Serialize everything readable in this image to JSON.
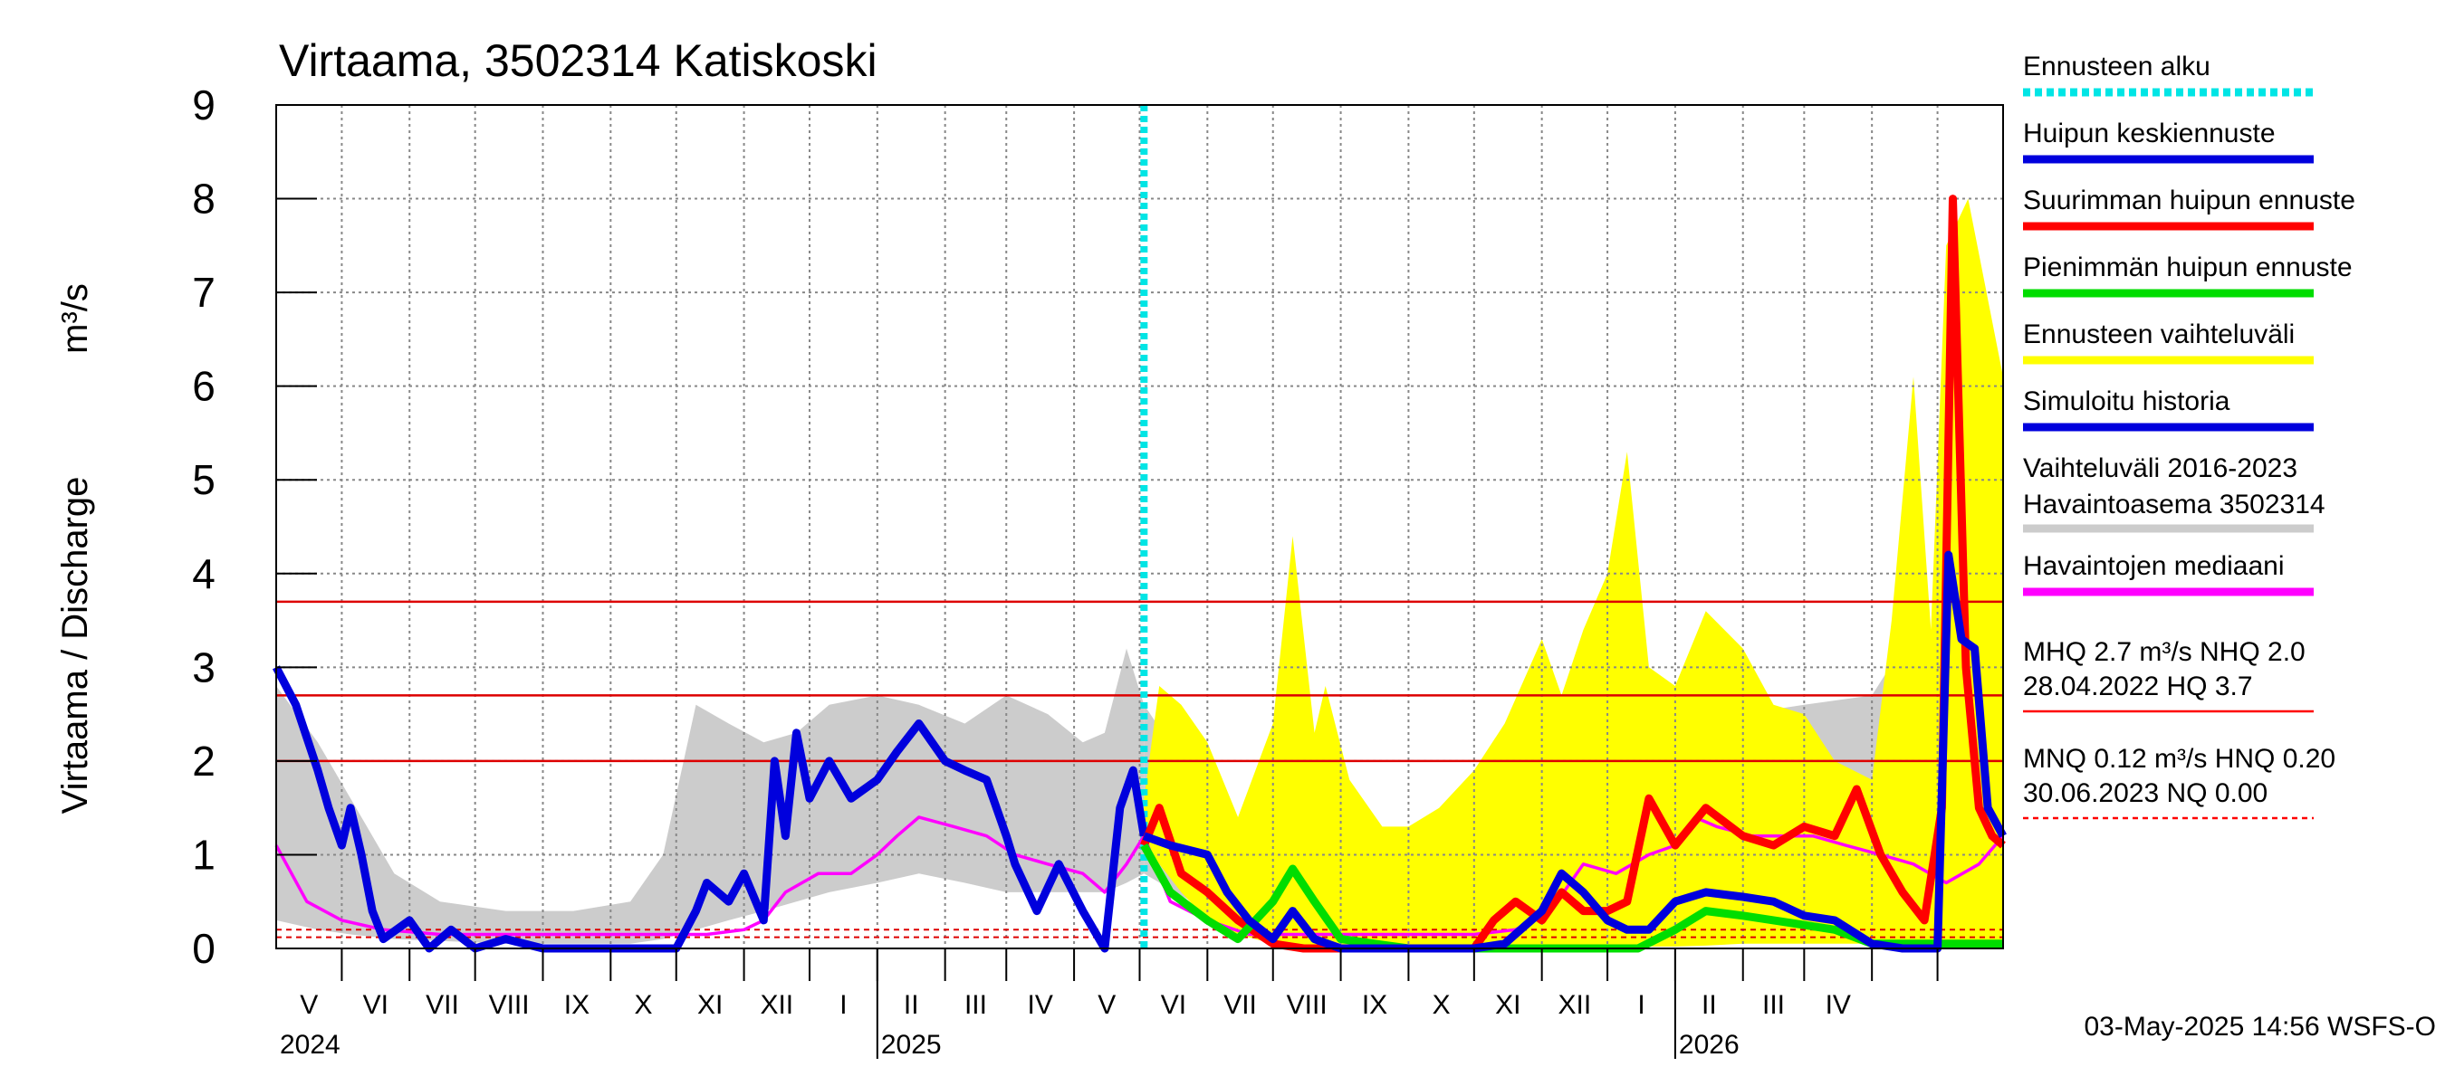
{
  "chart_data": {
    "type": "line",
    "title": "Virtaama, 3502314 Katiskoski",
    "ylabel_left": "Virtaama / Discharge",
    "ylabel_unit": "m³/s",
    "ylim": [
      0,
      9
    ],
    "yticks": [
      "0",
      "1",
      "2",
      "3",
      "4",
      "5",
      "6",
      "7",
      "8",
      "9"
    ],
    "x_start": "2024-04-01",
    "x_end": "2026-05-31",
    "month_labels": [
      "V",
      "VI",
      "VII",
      "VIII",
      "IX",
      "X",
      "XI",
      "XII",
      "I",
      "II",
      "III",
      "IV",
      "V",
      "VI",
      "VII",
      "VIII",
      "IX",
      "X",
      "XI",
      "XII",
      "I",
      "II",
      "III",
      "IV"
    ],
    "year_labels": [
      {
        "text": "2024",
        "date": "2024-04-01"
      },
      {
        "text": "2025",
        "date": "2025-01-01"
      },
      {
        "text": "2026",
        "date": "2026-01-01"
      }
    ],
    "forecast_start": "2025-05-03",
    "timestamp": "03-May-2025 14:56 WSFS-O",
    "reference_lines": [
      {
        "name": "HQ",
        "value": 3.7
      },
      {
        "name": "MHQ",
        "value": 2.7
      },
      {
        "name": "NHQ",
        "value": 2.0
      },
      {
        "name": "HNQ",
        "value": 0.2
      },
      {
        "name": "MNQ",
        "value": 0.12
      },
      {
        "name": "NQ",
        "value": 0.0
      }
    ],
    "legend": [
      {
        "label": "Ennusteen alku",
        "color": "#00e5e5",
        "style": "dotted"
      },
      {
        "label": "Huipun keskiennuste",
        "color": "#0000dd",
        "style": "solid"
      },
      {
        "label": "Suurimman huipun ennuste",
        "color": "#ff0000",
        "style": "solid"
      },
      {
        "label": "Pienimmän huipun ennuste",
        "color": "#00dd00",
        "style": "solid"
      },
      {
        "label": "Ennusteen vaihteluväli",
        "color": "#ffff00",
        "style": "solid"
      },
      {
        "label": "Simuloitu historia",
        "color": "#0000dd",
        "style": "solid"
      },
      {
        "label": "Vaihteluväli 2016-2023",
        "label2": " Havaintoasema 3502314",
        "color": "#cccccc",
        "style": "solid"
      },
      {
        "label": "Havaintojen mediaani",
        "color": "#ff00ff",
        "style": "solid"
      }
    ],
    "stats": [
      {
        "line1": "MHQ  2.7 m³/s NHQ  2.0",
        "line2": "28.04.2022 HQ  3.7",
        "color": "#ff0000",
        "style": "solid"
      },
      {
        "line1": "MNQ 0.12 m³/s HNQ 0.20",
        "line2": "30.06.2023 NQ 0.00",
        "color": "#ff0000",
        "style": "dashed"
      }
    ],
    "series": [
      {
        "name": "Vaihteluväli 2016-2023",
        "kind": "band",
        "color": "#cccccc",
        "x": [
          "2024-04-01",
          "2024-04-20",
          "2024-05-05",
          "2024-05-25",
          "2024-06-15",
          "2024-07-15",
          "2024-08-15",
          "2024-09-10",
          "2024-09-25",
          "2024-10-10",
          "2024-10-25",
          "2024-11-10",
          "2024-11-25",
          "2024-12-10",
          "2025-01-01",
          "2025-01-20",
          "2025-02-10",
          "2025-03-01",
          "2025-03-20",
          "2025-04-05",
          "2025-04-15",
          "2025-04-25",
          "2025-05-03"
        ],
        "lo": [
          0.3,
          0.2,
          0.15,
          0.1,
          0.08,
          0.05,
          0.05,
          0.05,
          0.1,
          0.2,
          0.3,
          0.4,
          0.5,
          0.6,
          0.7,
          0.8,
          0.7,
          0.6,
          0.6,
          0.6,
          0.6,
          0.7,
          0.8
        ],
        "hi": [
          2.8,
          2.2,
          1.6,
          0.8,
          0.5,
          0.4,
          0.4,
          0.5,
          1.0,
          2.6,
          2.4,
          2.2,
          2.3,
          2.6,
          2.7,
          2.6,
          2.4,
          2.7,
          2.5,
          2.2,
          2.3,
          3.2,
          2.6
        ]
      },
      {
        "name": "Vaihteluväli 2016-2023 (ennuste)",
        "kind": "band",
        "color": "#cccccc",
        "x": [
          "2025-05-03",
          "2025-06-01",
          "2025-07-01",
          "2025-08-01",
          "2025-09-01",
          "2025-10-01",
          "2025-11-01",
          "2025-12-01",
          "2026-01-01",
          "2026-02-01",
          "2026-03-01",
          "2026-04-01",
          "2026-04-20",
          "2026-05-10",
          "2026-05-31"
        ],
        "lo": [
          0.8,
          0.4,
          0.15,
          0.05,
          0.05,
          0.15,
          0.35,
          0.6,
          0.8,
          0.7,
          0.6,
          0.6,
          0.8,
          0.6,
          0.5
        ],
        "hi": [
          2.6,
          1.6,
          0.9,
          0.6,
          0.9,
          1.8,
          2.1,
          2.3,
          2.4,
          2.5,
          2.6,
          2.7,
          3.4,
          3.0,
          2.4
        ]
      },
      {
        "name": "Ennusteen vaihteluväli",
        "kind": "band",
        "color": "#ffff00",
        "x": [
          "2025-05-03",
          "2025-05-10",
          "2025-05-20",
          "2025-06-01",
          "2025-06-15",
          "2025-07-01",
          "2025-07-10",
          "2025-07-20",
          "2025-07-25",
          "2025-08-05",
          "2025-08-20",
          "2025-09-01",
          "2025-09-15",
          "2025-10-01",
          "2025-10-15",
          "2025-11-01",
          "2025-11-10",
          "2025-11-20",
          "2025-12-01",
          "2025-12-10",
          "2025-12-20",
          "2026-01-01",
          "2026-01-15",
          "2026-02-01",
          "2026-02-15",
          "2026-03-01",
          "2026-03-15",
          "2026-04-01",
          "2026-04-10",
          "2026-04-20",
          "2026-04-28",
          "2026-05-05",
          "2026-05-15",
          "2026-05-31"
        ],
        "lo": [
          1.1,
          0.9,
          0.6,
          0.3,
          0.15,
          0.05,
          0.03,
          0.02,
          0.02,
          0.02,
          0.02,
          0.02,
          0.02,
          0.02,
          0.02,
          0.02,
          0.02,
          0.02,
          0.02,
          0.02,
          0.02,
          0.02,
          0.03,
          0.05,
          0.05,
          0.05,
          0.05,
          0.05,
          0.05,
          0.05,
          0.05,
          0.05,
          0.05,
          0.05
        ],
        "hi": [
          1.6,
          2.8,
          2.6,
          2.2,
          1.4,
          2.4,
          4.4,
          2.3,
          2.8,
          1.8,
          1.3,
          1.3,
          1.5,
          1.9,
          2.4,
          3.3,
          2.7,
          3.4,
          4.0,
          5.3,
          3.0,
          2.8,
          3.6,
          3.2,
          2.6,
          2.5,
          2.0,
          1.8,
          3.5,
          6.1,
          3.4,
          7.5,
          8.0,
          6.1
        ]
      },
      {
        "name": "Havaintojen mediaani",
        "kind": "line",
        "color": "#ff00ff",
        "x": [
          "2024-04-01",
          "2024-04-15",
          "2024-05-01",
          "2024-05-20",
          "2024-06-15",
          "2024-07-15",
          "2024-08-15",
          "2024-09-15",
          "2024-10-15",
          "2024-11-01",
          "2024-11-10",
          "2024-11-20",
          "2024-12-05",
          "2024-12-20",
          "2025-01-01",
          "2025-01-10",
          "2025-01-20",
          "2025-02-05",
          "2025-02-20",
          "2025-03-05",
          "2025-03-20",
          "2025-04-05",
          "2025-04-15",
          "2025-04-25",
          "2025-05-03",
          "2025-05-15",
          "2025-06-01",
          "2025-06-20",
          "2025-07-10",
          "2025-08-01",
          "2025-09-01",
          "2025-10-01",
          "2025-10-20",
          "2025-11-05",
          "2025-11-20",
          "2025-12-05",
          "2025-12-20",
          "2026-01-01",
          "2026-01-10",
          "2026-01-20",
          "2026-02-05",
          "2026-02-20",
          "2026-03-05",
          "2026-03-20",
          "2026-04-05",
          "2026-04-20",
          "2026-05-05",
          "2026-05-20",
          "2026-05-31"
        ],
        "y": [
          1.1,
          0.5,
          0.3,
          0.2,
          0.15,
          0.15,
          0.15,
          0.15,
          0.15,
          0.2,
          0.3,
          0.6,
          0.8,
          0.8,
          1.0,
          1.2,
          1.4,
          1.3,
          1.2,
          1.0,
          0.9,
          0.8,
          0.6,
          0.9,
          1.2,
          0.5,
          0.3,
          0.15,
          0.15,
          0.15,
          0.15,
          0.15,
          0.2,
          0.4,
          0.9,
          0.8,
          1.0,
          1.1,
          1.4,
          1.3,
          1.2,
          1.2,
          1.2,
          1.1,
          1.0,
          0.9,
          0.7,
          0.9,
          1.2
        ]
      },
      {
        "name": "Simuloitu historia",
        "kind": "line",
        "color": "#0000dd",
        "x": [
          "2024-04-01",
          "2024-04-10",
          "2024-04-20",
          "2024-04-25",
          "2024-05-01",
          "2024-05-05",
          "2024-05-10",
          "2024-05-15",
          "2024-05-20",
          "2024-06-01",
          "2024-06-10",
          "2024-06-20",
          "2024-07-01",
          "2024-07-15",
          "2024-08-01",
          "2024-08-20",
          "2024-09-15",
          "2024-10-01",
          "2024-10-10",
          "2024-10-15",
          "2024-10-25",
          "2024-11-01",
          "2024-11-10",
          "2024-11-15",
          "2024-11-20",
          "2024-11-25",
          "2024-12-01",
          "2024-12-10",
          "2024-12-20",
          "2025-01-01",
          "2025-01-10",
          "2025-01-20",
          "2025-02-01",
          "2025-02-10",
          "2025-02-20",
          "2025-03-01",
          "2025-03-05",
          "2025-03-15",
          "2025-03-25",
          "2025-04-05",
          "2025-04-15",
          "2025-04-22",
          "2025-04-28",
          "2025-05-03"
        ],
        "y": [
          3.0,
          2.6,
          1.9,
          1.5,
          1.1,
          1.5,
          1.0,
          0.4,
          0.1,
          0.3,
          0.0,
          0.2,
          0.0,
          0.1,
          0.0,
          0.0,
          0.0,
          0.0,
          0.4,
          0.7,
          0.5,
          0.8,
          0.3,
          2.0,
          1.2,
          2.3,
          1.6,
          2.0,
          1.6,
          1.8,
          2.1,
          2.4,
          2.0,
          1.9,
          1.8,
          1.2,
          0.9,
          0.4,
          0.9,
          0.4,
          0.0,
          1.5,
          1.9,
          1.2
        ]
      },
      {
        "name": "Suurimman huipun ennuste",
        "kind": "line",
        "color": "#ff0000",
        "x": [
          "2025-05-03",
          "2025-05-10",
          "2025-05-20",
          "2025-06-01",
          "2025-06-15",
          "2025-07-01",
          "2025-07-15",
          "2025-08-01",
          "2025-09-01",
          "2025-10-01",
          "2025-10-10",
          "2025-10-20",
          "2025-11-01",
          "2025-11-10",
          "2025-11-20",
          "2025-12-01",
          "2025-12-10",
          "2025-12-20",
          "2026-01-01",
          "2026-01-15",
          "2026-02-01",
          "2026-02-15",
          "2026-03-01",
          "2026-03-15",
          "2026-03-25",
          "2026-04-05",
          "2026-04-15",
          "2026-04-25",
          "2026-05-03",
          "2026-05-08",
          "2026-05-14",
          "2026-05-20",
          "2026-05-26",
          "2026-05-31"
        ],
        "y": [
          1.1,
          1.5,
          0.8,
          0.6,
          0.3,
          0.05,
          0.0,
          0.0,
          0.0,
          0.0,
          0.3,
          0.5,
          0.3,
          0.6,
          0.4,
          0.4,
          0.5,
          1.6,
          1.1,
          1.5,
          1.2,
          1.1,
          1.3,
          1.2,
          1.7,
          1.0,
          0.6,
          0.3,
          1.5,
          8.0,
          3.0,
          1.5,
          1.2,
          1.1
        ]
      },
      {
        "name": "Pienimmän huipun ennuste",
        "kind": "line",
        "color": "#00dd00",
        "x": [
          "2025-05-03",
          "2025-05-15",
          "2025-06-01",
          "2025-06-15",
          "2025-07-01",
          "2025-07-10",
          "2025-07-20",
          "2025-08-01",
          "2025-09-01",
          "2025-10-01",
          "2025-11-01",
          "2025-12-01",
          "2025-12-15",
          "2026-01-01",
          "2026-01-15",
          "2026-02-01",
          "2026-02-15",
          "2026-03-01",
          "2026-03-15",
          "2026-04-01",
          "2026-04-15",
          "2026-05-01",
          "2026-05-31"
        ],
        "y": [
          1.1,
          0.6,
          0.3,
          0.1,
          0.5,
          0.85,
          0.5,
          0.1,
          0.0,
          0.0,
          0.0,
          0.0,
          0.0,
          0.2,
          0.4,
          0.35,
          0.3,
          0.25,
          0.2,
          0.05,
          0.05,
          0.05,
          0.05
        ]
      },
      {
        "name": "Huipun keskiennuste",
        "kind": "line",
        "color": "#0000dd",
        "x": [
          "2025-05-03",
          "2025-05-15",
          "2025-06-01",
          "2025-06-10",
          "2025-06-20",
          "2025-07-01",
          "2025-07-10",
          "2025-07-20",
          "2025-08-01",
          "2025-09-01",
          "2025-10-01",
          "2025-10-15",
          "2025-11-01",
          "2025-11-10",
          "2025-11-20",
          "2025-12-01",
          "2025-12-10",
          "2025-12-20",
          "2026-01-01",
          "2026-01-15",
          "2026-02-01",
          "2026-02-15",
          "2026-03-01",
          "2026-03-15",
          "2026-04-01",
          "2026-04-15",
          "2026-05-01",
          "2026-05-06",
          "2026-05-12",
          "2026-05-18",
          "2026-05-24",
          "2026-05-31"
        ],
        "y": [
          1.2,
          1.1,
          1.0,
          0.6,
          0.3,
          0.1,
          0.4,
          0.1,
          0.0,
          0.0,
          0.0,
          0.05,
          0.4,
          0.8,
          0.6,
          0.3,
          0.2,
          0.2,
          0.5,
          0.6,
          0.55,
          0.5,
          0.35,
          0.3,
          0.05,
          0.0,
          0.0,
          4.2,
          3.3,
          3.2,
          1.5,
          1.2
        ]
      }
    ]
  }
}
